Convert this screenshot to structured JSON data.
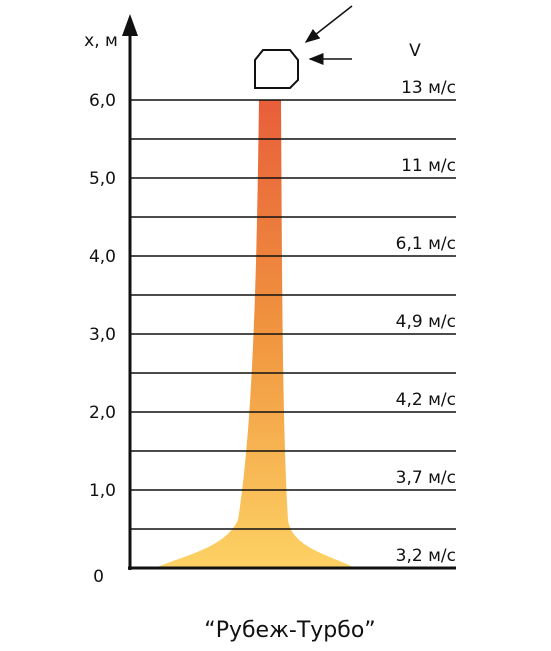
{
  "axis": {
    "label": "x, м",
    "ticks": [
      "6,0",
      "5,0",
      "4,0",
      "3,0",
      "2,0",
      "1,0",
      "0"
    ]
  },
  "velocity": {
    "label": "V",
    "values": [
      "13 м/с",
      "11 м/с",
      "6,1 м/с",
      "4,9 м/с",
      "4,2 м/с",
      "3,7 м/с",
      "3,2 м/с"
    ]
  },
  "caption": "“Рубеж-Турбо”"
}
